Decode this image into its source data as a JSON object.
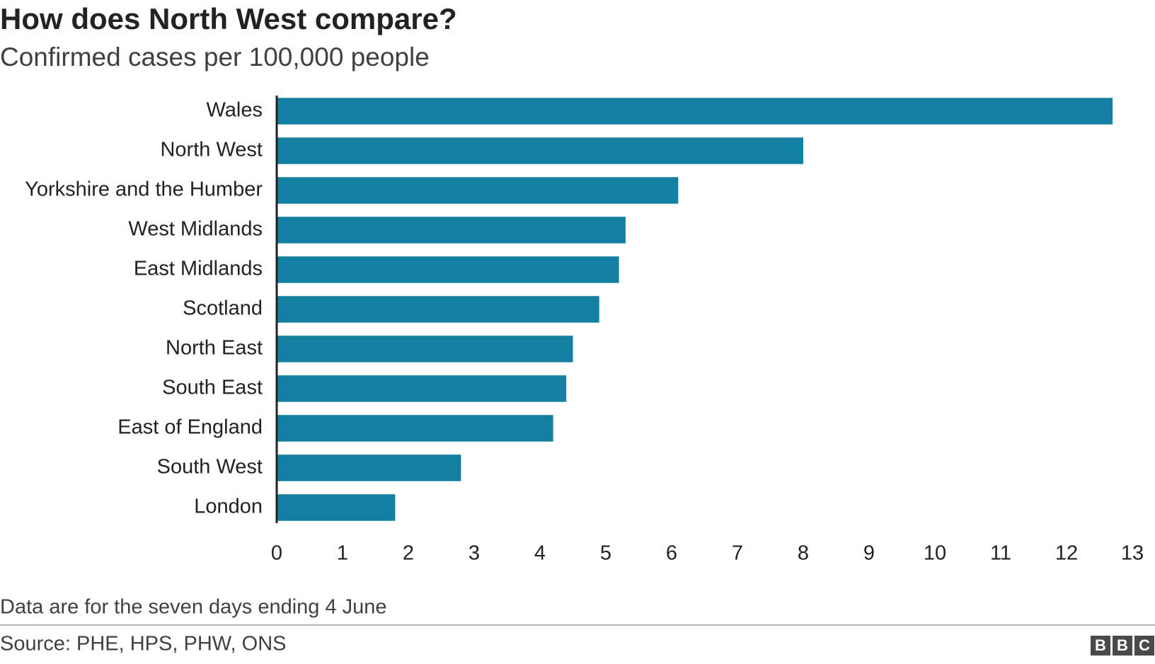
{
  "chart_data": {
    "type": "barh",
    "title": "How does North West compare?",
    "subtitle": "Confirmed cases per 100,000 people",
    "categories": [
      "Wales",
      "North West",
      "Yorkshire and the Humber",
      "West Midlands",
      "East Midlands",
      "Scotland",
      "North East",
      "South East",
      "East of England",
      "South West",
      "London"
    ],
    "values": [
      12.7,
      8.0,
      6.1,
      5.3,
      5.2,
      4.9,
      4.5,
      4.4,
      4.2,
      2.8,
      1.8
    ],
    "color": "#1380a1",
    "xlim": [
      0,
      13
    ],
    "xticks": [
      0,
      1,
      2,
      3,
      4,
      5,
      6,
      7,
      8,
      9,
      10,
      11,
      12,
      13
    ],
    "grid": false,
    "note": "Data are for the seven days ending 4 June",
    "source": "Source: PHE, HPS, PHW, ONS",
    "logo": [
      "B",
      "B",
      "C"
    ]
  }
}
